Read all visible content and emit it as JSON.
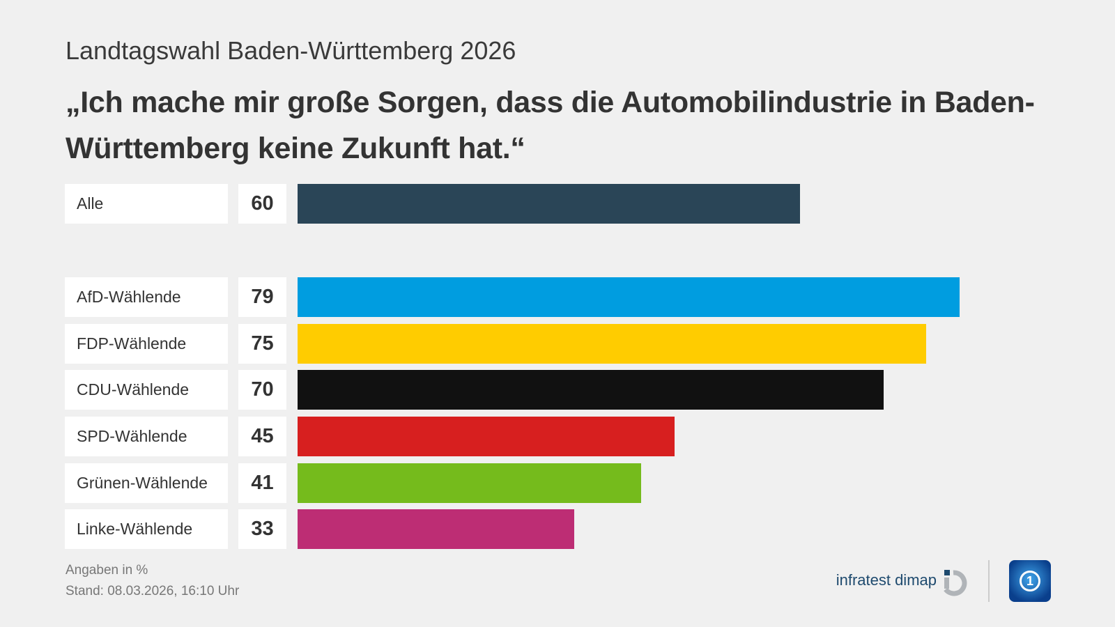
{
  "subtitle": "Landtagswahl Baden-Württemberg 2026",
  "title": "„Ich mache mir große Sorgen, dass die Automobilindustrie in Baden-Württemberg keine Zukunft hat.“",
  "chart_data": {
    "type": "bar",
    "orientation": "horizontal",
    "categories": [
      "Alle",
      "AfD-Wählende",
      "FDP-Wählende",
      "CDU-Wählende",
      "SPD-Wählende",
      "Grünen-Wählende",
      "Linke-Wählende"
    ],
    "values": [
      60,
      79,
      75,
      70,
      45,
      41,
      33
    ],
    "colors": [
      "#2a4557",
      "#009de0",
      "#ffcc00",
      "#111111",
      "#d71f1f",
      "#75bb1c",
      "#bd2d74"
    ],
    "unit": "%",
    "xlim": [
      0,
      100
    ]
  },
  "footer": {
    "note": "Angaben in %",
    "stand": "Stand:  08.03.2026, 16:10 Uhr"
  },
  "logos": {
    "infratest": "infratest dimap",
    "ard": "1"
  }
}
